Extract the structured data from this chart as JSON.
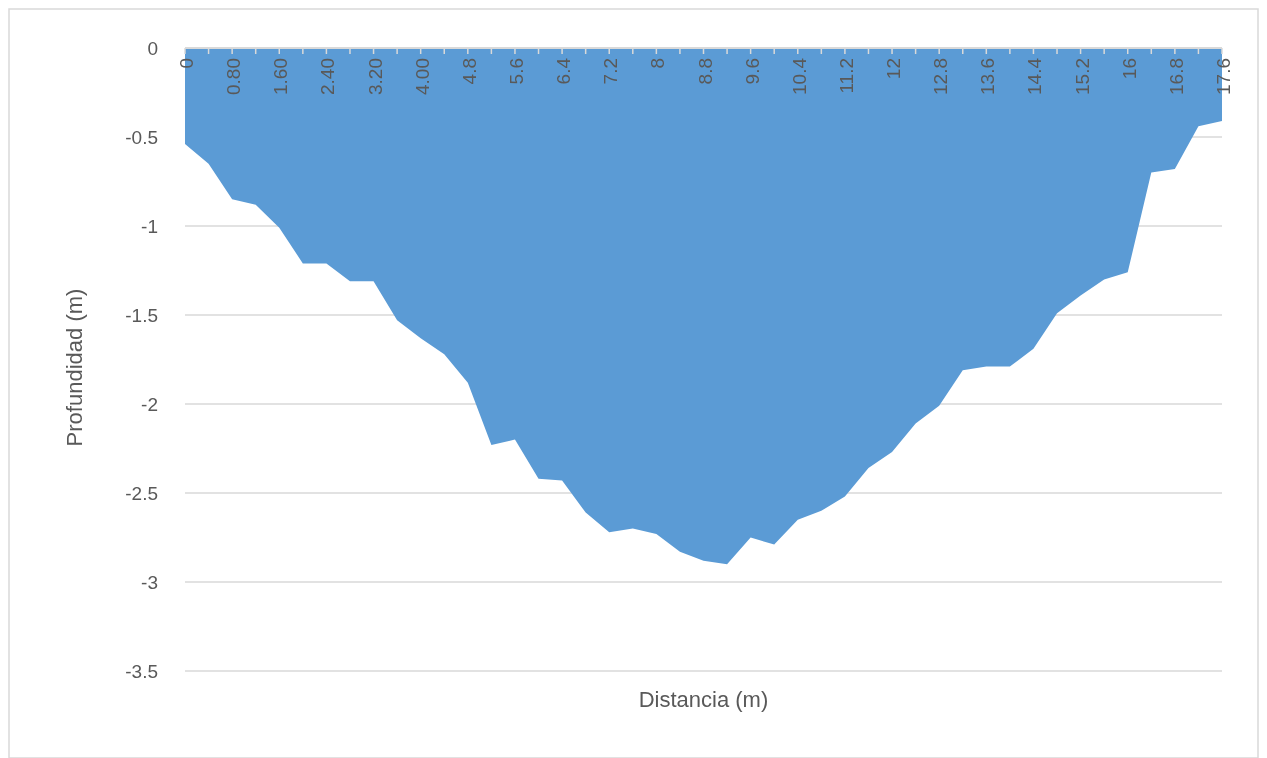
{
  "chart_data": {
    "type": "area",
    "xlabel": "Distancia (m)",
    "ylabel": "Profundidad (m)",
    "categories": [
      "0",
      null,
      "0.80",
      null,
      "1.60",
      null,
      "2.40",
      null,
      "3.20",
      null,
      "4.00",
      null,
      "4.8",
      null,
      "5.6",
      null,
      "6.4",
      null,
      "7.2",
      null,
      "8",
      null,
      "8.8",
      null,
      "9.6",
      null,
      "10.4",
      null,
      "11.2",
      null,
      "12",
      null,
      "12.8",
      null,
      "13.6",
      null,
      "14.4",
      null,
      "15.2",
      null,
      "16",
      null,
      "16.8",
      null,
      "17.6"
    ],
    "series": [
      {
        "color": "#5b9bd5",
        "values": [
          -0.54,
          -0.65,
          -0.85,
          -0.88,
          -1.01,
          -1.21,
          -1.21,
          -1.31,
          -1.31,
          -1.53,
          -1.63,
          -1.72,
          -1.88,
          -2.23,
          -2.2,
          -2.42,
          -2.43,
          -2.61,
          -2.72,
          -2.7,
          -2.73,
          -2.83,
          -2.88,
          -2.9,
          -2.75,
          -2.79,
          -2.65,
          -2.6,
          -2.52,
          -2.36,
          -2.27,
          -2.11,
          -2.01,
          -1.81,
          -1.79,
          -1.79,
          -1.69,
          -1.49,
          -1.39,
          -1.3,
          -1.26,
          -0.7,
          -0.68,
          -0.44,
          -0.41
        ]
      }
    ],
    "ylim": [
      -3.5,
      0
    ],
    "yticks": [
      0,
      -0.5,
      -1,
      -1.5,
      -2,
      -2.5,
      -3,
      -3.5
    ],
    "grid": "y"
  }
}
